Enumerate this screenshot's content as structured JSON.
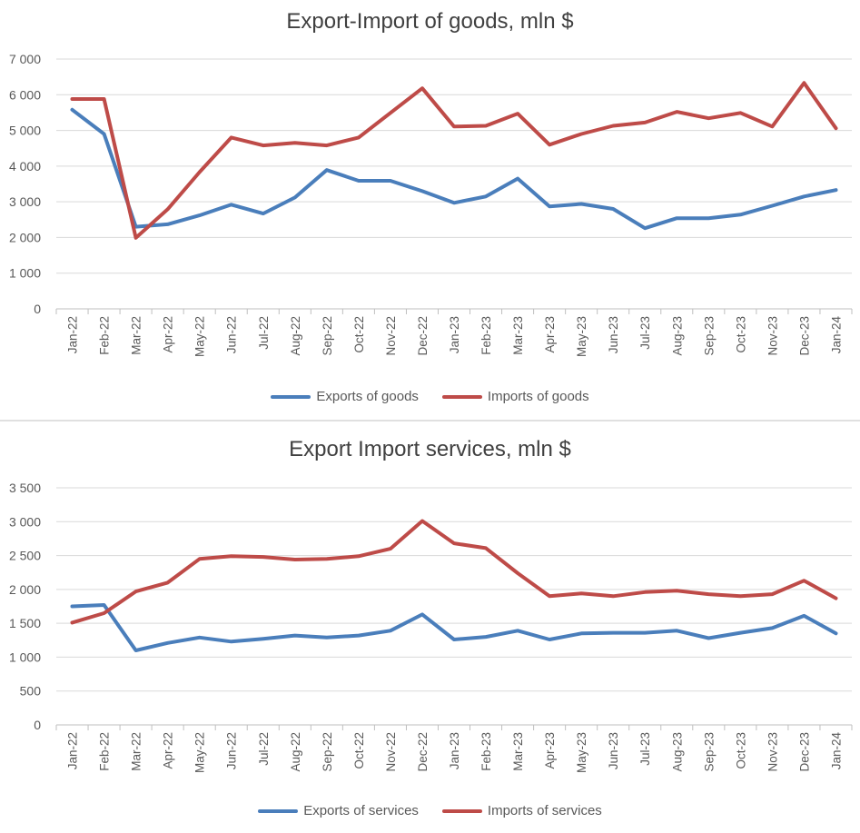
{
  "colors": {
    "exports": "#4a7ebb",
    "imports": "#be4b48",
    "grid": "#d9d9d9",
    "axis": "#bfbfbf"
  },
  "chart_data": [
    {
      "type": "line",
      "title": "Export-Import of goods, mln $",
      "categories": [
        "Jan-22",
        "Feb-22",
        "Mar-22",
        "Apr-22",
        "May-22",
        "Jun-22",
        "Jul-22",
        "Aug-22",
        "Sep-22",
        "Oct-22",
        "Nov-22",
        "Dec-22",
        "Jan-23",
        "Feb-23",
        "Mar-23",
        "Apr-23",
        "May-23",
        "Jun-23",
        "Jul-23",
        "Aug-23",
        "Sep-23",
        "Oct-23",
        "Nov-23",
        "Dec-23",
        "Jan-24"
      ],
      "ylim": [
        0,
        7000
      ],
      "yticks": [
        "0",
        "1 000",
        "2 000",
        "3 000",
        "4 000",
        "5 000",
        "6 000",
        "7 000"
      ],
      "grid": true,
      "legend": "bottom",
      "series": [
        {
          "name": "Exports of goods",
          "color": "#4a7ebb",
          "values": [
            5580,
            4900,
            2300,
            2370,
            2620,
            2920,
            2670,
            3120,
            3890,
            3590,
            3590,
            3300,
            2970,
            3150,
            3650,
            2870,
            2940,
            2800,
            2260,
            2540,
            2540,
            2640,
            2890,
            3150,
            3330
          ]
        },
        {
          "name": "Imports of goods",
          "color": "#be4b48",
          "values": [
            5880,
            5880,
            1990,
            2790,
            3830,
            4800,
            4580,
            4650,
            4580,
            4800,
            5490,
            6180,
            5110,
            5130,
            5470,
            4600,
            4900,
            5130,
            5220,
            5520,
            5340,
            5490,
            5110,
            6330,
            5060
          ]
        }
      ]
    },
    {
      "type": "line",
      "title": "Export Import services, mln $",
      "categories": [
        "Jan-22",
        "Feb-22",
        "Mar-22",
        "Apr-22",
        "May-22",
        "Jun-22",
        "Jul-22",
        "Aug-22",
        "Sep-22",
        "Oct-22",
        "Nov-22",
        "Dec-22",
        "Jan-23",
        "Feb-23",
        "Mar-23",
        "Apr-23",
        "May-23",
        "Jun-23",
        "Jul-23",
        "Aug-23",
        "Sep-23",
        "Oct-23",
        "Nov-23",
        "Dec-23",
        "Jan-24"
      ],
      "ylim": [
        0,
        3500
      ],
      "yticks": [
        "0",
        "500",
        "1 000",
        "1 500",
        "2 000",
        "2 500",
        "3 000",
        "3 500"
      ],
      "grid": true,
      "legend": "bottom",
      "series": [
        {
          "name": "Exports of services",
          "color": "#4a7ebb",
          "values": [
            1750,
            1770,
            1100,
            1210,
            1290,
            1230,
            1270,
            1320,
            1290,
            1320,
            1390,
            1630,
            1260,
            1300,
            1390,
            1260,
            1350,
            1360,
            1360,
            1390,
            1280,
            1360,
            1430,
            1610,
            1350
          ]
        },
        {
          "name": "Imports of services",
          "color": "#be4b48",
          "values": [
            1510,
            1650,
            1970,
            2100,
            2450,
            2490,
            2480,
            2440,
            2450,
            2490,
            2600,
            3010,
            2680,
            2610,
            2240,
            1900,
            1940,
            1900,
            1960,
            1980,
            1930,
            1900,
            1930,
            2130,
            1870
          ]
        }
      ]
    }
  ]
}
